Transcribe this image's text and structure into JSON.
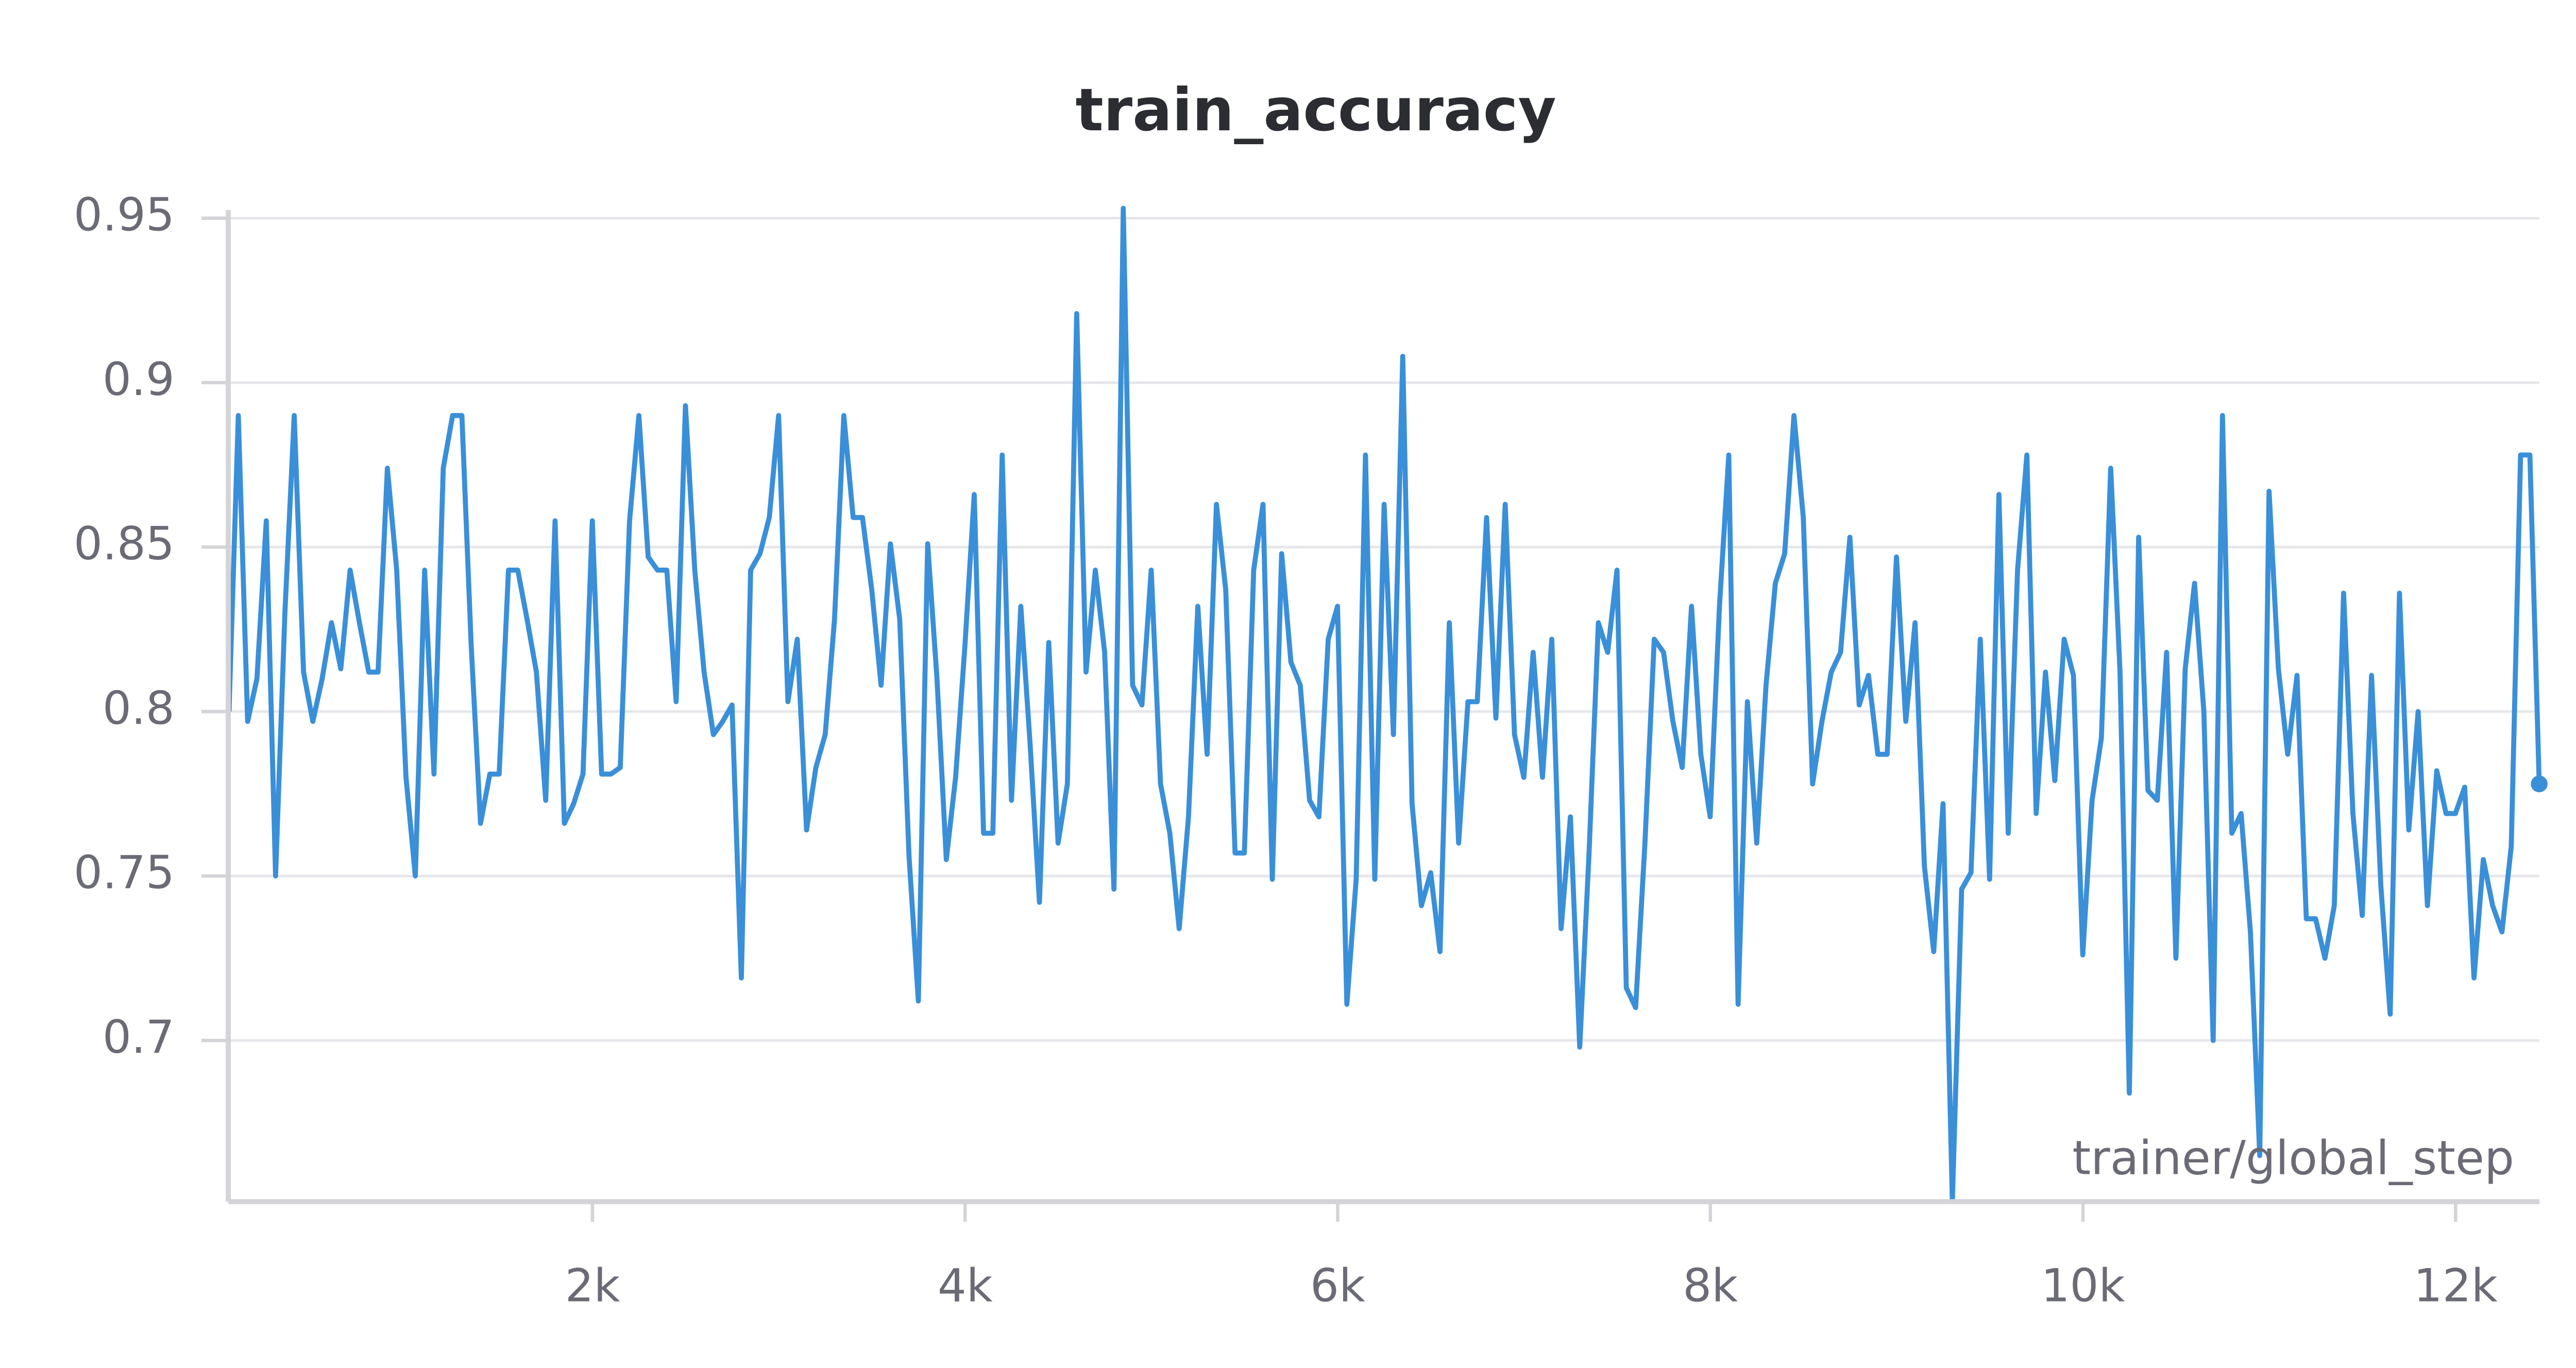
{
  "chart_data": {
    "type": "line",
    "title": "train_accuracy",
    "x_label": "trainer/global_step",
    "color": "#3a8fd9",
    "x": [
      49,
      99,
      149,
      199,
      249,
      299,
      349,
      399,
      449,
      499,
      549,
      599,
      649,
      699,
      749,
      799,
      849,
      899,
      949,
      999,
      1049,
      1099,
      1149,
      1199,
      1249,
      1299,
      1349,
      1399,
      1449,
      1499,
      1549,
      1599,
      1649,
      1699,
      1749,
      1799,
      1849,
      1899,
      1949,
      1999,
      2049,
      2099,
      2149,
      2199,
      2249,
      2299,
      2349,
      2399,
      2449,
      2499,
      2549,
      2599,
      2649,
      2699,
      2749,
      2799,
      2849,
      2899,
      2949,
      2999,
      3049,
      3099,
      3149,
      3199,
      3249,
      3299,
      3349,
      3399,
      3449,
      3499,
      3549,
      3599,
      3649,
      3699,
      3749,
      3799,
      3849,
      3899,
      3949,
      3999,
      4049,
      4099,
      4149,
      4199,
      4249,
      4299,
      4349,
      4399,
      4449,
      4499,
      4549,
      4599,
      4649,
      4699,
      4749,
      4799,
      4849,
      4899,
      4949,
      4999,
      5049,
      5099,
      5149,
      5199,
      5249,
      5299,
      5349,
      5399,
      5449,
      5499,
      5549,
      5599,
      5649,
      5699,
      5749,
      5799,
      5849,
      5899,
      5949,
      5999,
      6049,
      6099,
      6149,
      6199,
      6249,
      6299,
      6349,
      6399,
      6449,
      6499,
      6549,
      6599,
      6649,
      6699,
      6749,
      6799,
      6849,
      6899,
      6949,
      6999,
      7049,
      7099,
      7149,
      7199,
      7249,
      7299,
      7349,
      7399,
      7449,
      7499,
      7549,
      7599,
      7649,
      7699,
      7749,
      7799,
      7849,
      7899,
      7949,
      7999,
      8049,
      8099,
      8149,
      8199,
      8249,
      8299,
      8349,
      8399,
      8449,
      8499,
      8549,
      8599,
      8649,
      8699,
      8749,
      8799,
      8849,
      8899,
      8949,
      8999,
      9049,
      9099,
      9149,
      9199,
      9249,
      9299,
      9349,
      9399,
      9449,
      9499,
      9549,
      9599,
      9649,
      9699,
      9749,
      9799,
      9849,
      9899,
      9949,
      9999,
      10049,
      10099,
      10149,
      10199,
      10249,
      10299,
      10349,
      10399,
      10449,
      10499,
      10549,
      10599,
      10649,
      10699,
      10749,
      10799,
      10849,
      10899,
      10949,
      10999,
      11049,
      11099,
      11149,
      11199,
      11249,
      11299,
      11349,
      11399,
      11449,
      11499,
      11549,
      11599,
      11649,
      11699,
      11749,
      11799,
      11849,
      11899,
      11949,
      11999,
      12049,
      12099,
      12149,
      12199,
      12249,
      12299,
      12349,
      12399,
      12449
    ],
    "values": [
      0.8,
      0.89,
      0.797,
      0.81,
      0.858,
      0.75,
      0.83,
      0.89,
      0.812,
      0.797,
      0.81,
      0.827,
      0.813,
      0.843,
      0.827,
      0.812,
      0.812,
      0.874,
      0.843,
      0.78,
      0.75,
      0.843,
      0.781,
      0.874,
      0.89,
      0.89,
      0.82,
      0.766,
      0.781,
      0.781,
      0.843,
      0.843,
      0.828,
      0.812,
      0.773,
      0.858,
      0.766,
      0.772,
      0.781,
      0.858,
      0.781,
      0.781,
      0.783,
      0.858,
      0.89,
      0.847,
      0.843,
      0.843,
      0.803,
      0.893,
      0.843,
      0.812,
      0.793,
      0.797,
      0.802,
      0.719,
      0.843,
      0.848,
      0.859,
      0.89,
      0.803,
      0.822,
      0.764,
      0.783,
      0.793,
      0.828,
      0.89,
      0.859,
      0.859,
      0.837,
      0.808,
      0.851,
      0.828,
      0.756,
      0.712,
      0.851,
      0.81,
      0.755,
      0.78,
      0.82,
      0.866,
      0.763,
      0.763,
      0.878,
      0.773,
      0.832,
      0.79,
      0.742,
      0.821,
      0.76,
      0.778,
      0.921,
      0.812,
      0.843,
      0.818,
      0.746,
      0.953,
      0.808,
      0.802,
      0.843,
      0.778,
      0.763,
      0.734,
      0.768,
      0.832,
      0.787,
      0.863,
      0.837,
      0.757,
      0.757,
      0.843,
      0.863,
      0.749,
      0.848,
      0.815,
      0.808,
      0.773,
      0.768,
      0.822,
      0.832,
      0.711,
      0.749,
      0.878,
      0.749,
      0.863,
      0.793,
      0.908,
      0.772,
      0.741,
      0.751,
      0.727,
      0.827,
      0.76,
      0.803,
      0.803,
      0.859,
      0.798,
      0.863,
      0.793,
      0.78,
      0.818,
      0.78,
      0.822,
      0.734,
      0.768,
      0.698,
      0.757,
      0.827,
      0.818,
      0.843,
      0.716,
      0.71,
      0.76,
      0.822,
      0.818,
      0.797,
      0.783,
      0.832,
      0.787,
      0.768,
      0.832,
      0.878,
      0.711,
      0.803,
      0.76,
      0.808,
      0.839,
      0.848,
      0.89,
      0.859,
      0.778,
      0.797,
      0.812,
      0.818,
      0.853,
      0.802,
      0.811,
      0.787,
      0.787,
      0.847,
      0.797,
      0.827,
      0.753,
      0.727,
      0.772,
      0.651,
      0.746,
      0.751,
      0.822,
      0.749,
      0.866,
      0.763,
      0.843,
      0.878,
      0.769,
      0.812,
      0.779,
      0.822,
      0.811,
      0.726,
      0.773,
      0.792,
      0.874,
      0.812,
      0.684,
      0.853,
      0.776,
      0.773,
      0.818,
      0.725,
      0.813,
      0.839,
      0.8,
      0.7,
      0.89,
      0.763,
      0.769,
      0.733,
      0.665,
      0.867,
      0.813,
      0.787,
      0.811,
      0.737,
      0.737,
      0.725,
      0.741,
      0.836,
      0.769,
      0.738,
      0.811,
      0.747,
      0.708,
      0.836,
      0.764,
      0.8,
      0.741,
      0.782,
      0.769,
      0.769,
      0.777,
      0.719,
      0.755,
      0.741,
      0.733,
      0.759,
      0.878,
      0.878,
      0.778
    ],
    "xlim": [
      45,
      12450
    ],
    "ylim": [
      0.651,
      0.953
    ],
    "xticks": [
      {
        "value": 2000,
        "label": "2k"
      },
      {
        "value": 4000,
        "label": "4k"
      },
      {
        "value": 6000,
        "label": "6k"
      },
      {
        "value": 8000,
        "label": "8k"
      },
      {
        "value": 10000,
        "label": "10k"
      },
      {
        "value": 12000,
        "label": "12k"
      }
    ],
    "yticks": [
      0.7,
      0.75,
      0.8,
      0.85,
      0.9,
      0.95
    ],
    "grid": true
  }
}
